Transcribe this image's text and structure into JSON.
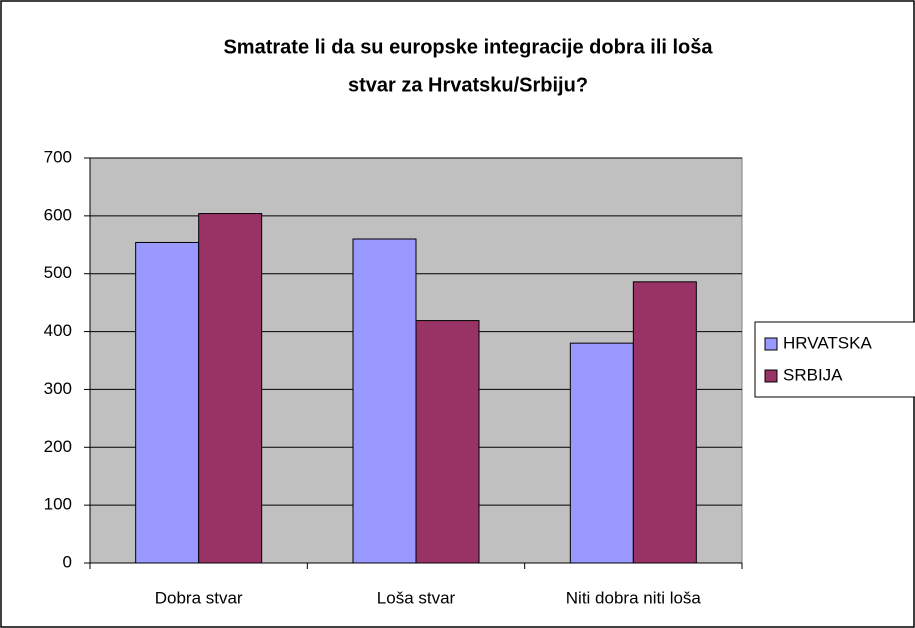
{
  "chart_data": {
    "type": "bar",
    "title": [
      "Smatrate li da su europske integracije dobra ili loša",
      "stvar za Hrvatsku/Srbiju?"
    ],
    "categories": [
      "Dobra stvar",
      "Loša stvar",
      "Niti dobra niti loša"
    ],
    "series": [
      {
        "name": "HRVATSKA",
        "color": "#9999ff",
        "values": [
          554,
          560,
          380
        ]
      },
      {
        "name": "SRBIJA",
        "color": "#993366",
        "values": [
          604,
          419,
          486
        ]
      }
    ],
    "ylim": [
      0,
      700
    ],
    "yticks": [
      0,
      100,
      200,
      300,
      400,
      500,
      600,
      700
    ],
    "grid": true,
    "legend": "right"
  }
}
